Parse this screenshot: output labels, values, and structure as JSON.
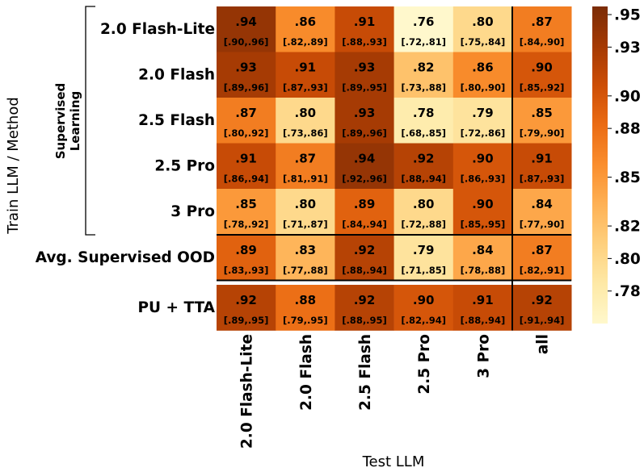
{
  "chart_data": {
    "type": "heatmap",
    "title": "",
    "xlabel": "Test LLM",
    "ylabel": "Train LLM / Method",
    "group_label": "Supervised Learning",
    "columns": [
      "2.0 Flash-Lite",
      "2.0 Flash",
      "2.5 Flash",
      "2.5 Pro",
      "3 Pro",
      "all"
    ],
    "rows": [
      {
        "label": "2.0 Flash-Lite",
        "values": [
          0.94,
          0.86,
          0.91,
          0.76,
          0.8,
          0.87
        ],
        "text": [
          ".94",
          ".86",
          ".91",
          ".76",
          ".80",
          ".87"
        ],
        "ci": [
          "[.90,.96]",
          "[.82,.89]",
          "[.88,.93]",
          "[.72,.81]",
          "[.75,.84]",
          "[.84,.90]"
        ]
      },
      {
        "label": "2.0 Flash",
        "values": [
          0.93,
          0.91,
          0.93,
          0.82,
          0.86,
          0.9
        ],
        "text": [
          ".93",
          ".91",
          ".93",
          ".82",
          ".86",
          ".90"
        ],
        "ci": [
          "[.89,.96]",
          "[.87,.93]",
          "[.89,.95]",
          "[.73,.88]",
          "[.80,.90]",
          "[.85,.92]"
        ]
      },
      {
        "label": "2.5 Flash",
        "values": [
          0.87,
          0.8,
          0.93,
          0.78,
          0.79,
          0.85
        ],
        "text": [
          ".87",
          ".80",
          ".93",
          ".78",
          ".79",
          ".85"
        ],
        "ci": [
          "[.80,.92]",
          "[.73,.86]",
          "[.89,.96]",
          "[.68,.85]",
          "[.72,.86]",
          "[.79,.90]"
        ]
      },
      {
        "label": "2.5 Pro",
        "values": [
          0.91,
          0.87,
          0.94,
          0.92,
          0.9,
          0.91
        ],
        "text": [
          ".91",
          ".87",
          ".94",
          ".92",
          ".90",
          ".91"
        ],
        "ci": [
          "[.86,.94]",
          "[.81,.91]",
          "[.92,.96]",
          "[.88,.94]",
          "[.86,.93]",
          "[.87,.93]"
        ]
      },
      {
        "label": "3 Pro",
        "values": [
          0.85,
          0.8,
          0.89,
          0.8,
          0.9,
          0.84
        ],
        "text": [
          ".85",
          ".80",
          ".89",
          ".80",
          ".90",
          ".84"
        ],
        "ci": [
          "[.78,.92]",
          "[.71,.87]",
          "[.84,.94]",
          "[.72,.88]",
          "[.85,.95]",
          "[.77,.90]"
        ]
      },
      {
        "label": "Avg. Supervised OOD",
        "values": [
          0.89,
          0.83,
          0.92,
          0.79,
          0.84,
          0.87
        ],
        "text": [
          ".89",
          ".83",
          ".92",
          ".79",
          ".84",
          ".87"
        ],
        "ci": [
          "[.83,.93]",
          "[.77,.88]",
          "[.88,.94]",
          "[.71,.85]",
          "[.78,.88]",
          "[.82,.91]"
        ]
      },
      {
        "label": "PU + TTA",
        "values": [
          0.92,
          0.88,
          0.92,
          0.9,
          0.91,
          0.92
        ],
        "text": [
          ".92",
          ".88",
          ".92",
          ".90",
          ".91",
          ".92"
        ],
        "ci": [
          "[.89,.95]",
          "[.79,.95]",
          "[.88,.95]",
          "[.82,.94]",
          "[.88,.94]",
          "[.91,.94]"
        ]
      }
    ],
    "colorbar": {
      "range": [
        0.76,
        0.955
      ],
      "ticks": [
        0.78,
        0.8,
        0.82,
        0.85,
        0.88,
        0.9,
        0.93,
        0.95
      ],
      "tick_labels": [
        ".78",
        ".80",
        ".82",
        ".85",
        ".88",
        ".90",
        ".93",
        ".95"
      ],
      "colors": [
        "#fff8cc",
        "#fee9a6",
        "#fed07e",
        "#feb155",
        "#fa8e2e",
        "#eb6c14",
        "#cd4e06",
        "#a53a04",
        "#7b2c06"
      ]
    }
  }
}
